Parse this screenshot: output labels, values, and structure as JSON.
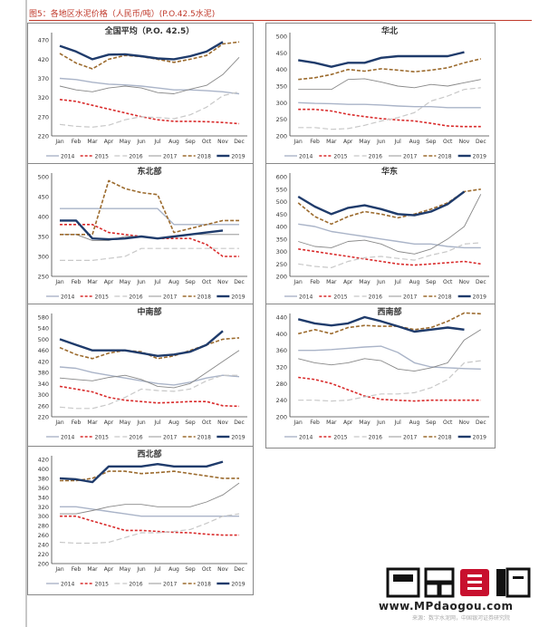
{
  "figure_title": "图5：各地区水泥价格（人民币/吨）(P.O.42.5水泥)",
  "watermark": {
    "logo": "买购网",
    "url": "www.MPdaogou.com"
  },
  "source_note": "来源：数字水泥网，中国银河证券研究院",
  "legend_labels": [
    "2014",
    "2015",
    "2016",
    "2017",
    "2018",
    "2019"
  ],
  "series_colors": {
    "2014": "#aab4c8",
    "2015": "#d92b2b",
    "2016": "#c8c8c8",
    "2017": "#888888",
    "2018": "#9c6b2e",
    "2019": "#1f3b6b"
  },
  "months": [
    "Jan",
    "Feb",
    "Mar",
    "Apr",
    "May",
    "Jun",
    "Jul",
    "Aug",
    "Sep",
    "Oct",
    "Nov",
    "Dec"
  ],
  "chart_data": [
    {
      "type": "line",
      "title": "全国平均（P.O. 42.5）",
      "x": [
        1,
        2,
        3,
        4,
        5,
        6,
        7,
        8,
        9,
        10,
        11,
        12
      ],
      "yticks": [
        220,
        270,
        320,
        370,
        420,
        470
      ],
      "ylim": [
        220,
        480
      ],
      "series": [
        {
          "name": "2014",
          "values": [
            370,
            367,
            360,
            355,
            353,
            350,
            345,
            340,
            340,
            338,
            335,
            330
          ]
        },
        {
          "name": "2015",
          "values": [
            315,
            310,
            300,
            290,
            280,
            270,
            262,
            258,
            258,
            257,
            255,
            252
          ]
        },
        {
          "name": "2016",
          "values": [
            250,
            245,
            243,
            248,
            262,
            270,
            268,
            265,
            275,
            295,
            325,
            335
          ]
        },
        {
          "name": "2017",
          "values": [
            350,
            340,
            335,
            345,
            350,
            345,
            333,
            330,
            342,
            352,
            380,
            425
          ]
        },
        {
          "name": "2018",
          "values": [
            435,
            410,
            395,
            420,
            430,
            427,
            420,
            412,
            420,
            430,
            460,
            465
          ]
        },
        {
          "name": "2019",
          "values": [
            455,
            440,
            420,
            432,
            433,
            428,
            422,
            420,
            428,
            440,
            465,
            null
          ]
        }
      ]
    },
    {
      "type": "line",
      "title": "华北",
      "x": [
        1,
        2,
        3,
        4,
        5,
        6,
        7,
        8,
        9,
        10,
        11,
        12
      ],
      "yticks": [
        200,
        250,
        300,
        350,
        400,
        450,
        500
      ],
      "ylim": [
        200,
        500
      ],
      "series": [
        {
          "name": "2014",
          "values": [
            300,
            298,
            297,
            295,
            295,
            293,
            290,
            288,
            288,
            285,
            285,
            285
          ]
        },
        {
          "name": "2015",
          "values": [
            280,
            280,
            275,
            265,
            258,
            252,
            248,
            245,
            238,
            230,
            228,
            228
          ]
        },
        {
          "name": "2016",
          "values": [
            225,
            225,
            220,
            222,
            232,
            245,
            255,
            270,
            305,
            320,
            340,
            345
          ]
        },
        {
          "name": "2017",
          "values": [
            340,
            340,
            340,
            370,
            372,
            362,
            350,
            345,
            355,
            350,
            360,
            370
          ]
        },
        {
          "name": "2018",
          "values": [
            370,
            375,
            385,
            400,
            395,
            402,
            398,
            393,
            398,
            405,
            420,
            432
          ]
        },
        {
          "name": "2019",
          "values": [
            428,
            420,
            408,
            420,
            420,
            435,
            440,
            440,
            440,
            440,
            452,
            null
          ]
        }
      ]
    },
    {
      "type": "line",
      "title": "东北部",
      "x": [
        1,
        2,
        3,
        4,
        5,
        6,
        7,
        8,
        9,
        10,
        11,
        12
      ],
      "yticks": [
        250,
        300,
        350,
        400,
        450,
        500
      ],
      "ylim": [
        250,
        500
      ],
      "series": [
        {
          "name": "2014",
          "values": [
            420,
            420,
            420,
            420,
            420,
            420,
            420,
            380,
            380,
            380,
            380,
            380
          ]
        },
        {
          "name": "2015",
          "values": [
            380,
            380,
            380,
            360,
            355,
            350,
            345,
            345,
            345,
            330,
            300,
            300
          ]
        },
        {
          "name": "2016",
          "values": [
            290,
            290,
            290,
            295,
            300,
            320,
            320,
            320,
            320,
            320,
            320,
            320
          ]
        },
        {
          "name": "2017",
          "values": [
            355,
            355,
            340,
            340,
            350,
            350,
            345,
            350,
            355,
            355,
            355,
            355
          ]
        },
        {
          "name": "2018",
          "values": [
            355,
            355,
            355,
            490,
            470,
            460,
            455,
            360,
            370,
            380,
            390,
            390
          ]
        },
        {
          "name": "2019",
          "values": [
            390,
            390,
            345,
            343,
            345,
            350,
            345,
            350,
            355,
            360,
            365,
            null
          ]
        }
      ]
    },
    {
      "type": "line",
      "title": "华东",
      "x": [
        1,
        2,
        3,
        4,
        5,
        6,
        7,
        8,
        9,
        10,
        11,
        12
      ],
      "yticks": [
        200,
        250,
        300,
        350,
        400,
        450,
        500,
        550,
        600
      ],
      "ylim": [
        200,
        600
      ],
      "series": [
        {
          "name": "2014",
          "values": [
            410,
            400,
            380,
            370,
            360,
            350,
            340,
            330,
            330,
            320,
            315,
            315
          ]
        },
        {
          "name": "2015",
          "values": [
            310,
            300,
            290,
            280,
            270,
            260,
            250,
            245,
            250,
            255,
            260,
            250
          ]
        },
        {
          "name": "2016",
          "values": [
            250,
            240,
            235,
            260,
            275,
            280,
            272,
            265,
            285,
            300,
            330,
            335
          ]
        },
        {
          "name": "2017",
          "values": [
            340,
            320,
            315,
            340,
            345,
            330,
            300,
            290,
            310,
            350,
            400,
            530
          ]
        },
        {
          "name": "2018",
          "values": [
            495,
            440,
            410,
            440,
            460,
            450,
            435,
            450,
            470,
            495,
            540,
            550
          ]
        },
        {
          "name": "2019",
          "values": [
            520,
            480,
            450,
            475,
            485,
            470,
            450,
            445,
            460,
            490,
            540,
            null
          ]
        }
      ]
    },
    {
      "type": "line",
      "title": "中南部",
      "x": [
        1,
        2,
        3,
        4,
        5,
        6,
        7,
        8,
        9,
        10,
        11,
        12
      ],
      "yticks": [
        220,
        260,
        300,
        340,
        380,
        420,
        460,
        500,
        540,
        580
      ],
      "ylim": [
        220,
        580
      ],
      "series": [
        {
          "name": "2014",
          "values": [
            400,
            395,
            380,
            370,
            360,
            350,
            340,
            335,
            345,
            360,
            370,
            365
          ]
        },
        {
          "name": "2015",
          "values": [
            330,
            320,
            310,
            290,
            280,
            275,
            270,
            272,
            275,
            275,
            260,
            258
          ]
        },
        {
          "name": "2016",
          "values": [
            255,
            250,
            250,
            265,
            290,
            320,
            315,
            312,
            320,
            350,
            370,
            370
          ]
        },
        {
          "name": "2017",
          "values": [
            360,
            355,
            350,
            362,
            370,
            355,
            330,
            325,
            340,
            380,
            420,
            460
          ]
        },
        {
          "name": "2018",
          "values": [
            470,
            445,
            430,
            450,
            460,
            455,
            430,
            440,
            460,
            480,
            500,
            505
          ]
        },
        {
          "name": "2019",
          "values": [
            500,
            480,
            460,
            460,
            460,
            450,
            440,
            445,
            455,
            480,
            530,
            null
          ]
        }
      ]
    },
    {
      "type": "line",
      "title": "西南部",
      "x": [
        1,
        2,
        3,
        4,
        5,
        6,
        7,
        8,
        9,
        10,
        11,
        12
      ],
      "yticks": [
        200,
        240,
        280,
        320,
        360,
        400,
        440
      ],
      "ylim": [
        200,
        440
      ],
      "series": [
        {
          "name": "2014",
          "values": [
            360,
            360,
            362,
            365,
            368,
            370,
            355,
            330,
            320,
            318,
            316,
            315
          ]
        },
        {
          "name": "2015",
          "values": [
            295,
            290,
            280,
            265,
            250,
            242,
            240,
            238,
            240,
            240,
            240,
            240
          ]
        },
        {
          "name": "2016",
          "values": [
            240,
            240,
            238,
            240,
            248,
            255,
            255,
            258,
            270,
            290,
            330,
            335
          ]
        },
        {
          "name": "2017",
          "values": [
            340,
            330,
            325,
            330,
            340,
            335,
            315,
            310,
            318,
            330,
            385,
            410
          ]
        },
        {
          "name": "2018",
          "values": [
            400,
            410,
            400,
            415,
            420,
            418,
            418,
            410,
            415,
            430,
            450,
            448
          ]
        },
        {
          "name": "2019",
          "values": [
            435,
            425,
            420,
            425,
            440,
            430,
            418,
            405,
            410,
            415,
            410,
            null
          ]
        }
      ]
    },
    {
      "type": "line",
      "title": "西北部",
      "x": [
        1,
        2,
        3,
        4,
        5,
        6,
        7,
        8,
        9,
        10,
        11,
        12
      ],
      "yticks": [
        200,
        220,
        240,
        260,
        280,
        300,
        320,
        340,
        360,
        380,
        400,
        420
      ],
      "ylim": [
        200,
        420
      ],
      "series": [
        {
          "name": "2014",
          "values": [
            320,
            320,
            315,
            310,
            305,
            300,
            300,
            300,
            300,
            300,
            300,
            300
          ]
        },
        {
          "name": "2015",
          "values": [
            300,
            300,
            290,
            280,
            270,
            270,
            268,
            266,
            265,
            262,
            260,
            260
          ]
        },
        {
          "name": "2016",
          "values": [
            245,
            243,
            243,
            245,
            255,
            265,
            265,
            268,
            272,
            285,
            300,
            305
          ]
        },
        {
          "name": "2017",
          "values": [
            305,
            305,
            312,
            320,
            325,
            325,
            320,
            320,
            320,
            330,
            345,
            370
          ]
        },
        {
          "name": "2018",
          "values": [
            375,
            375,
            380,
            395,
            395,
            390,
            392,
            395,
            390,
            385,
            380,
            380
          ]
        },
        {
          "name": "2019",
          "values": [
            380,
            378,
            372,
            405,
            405,
            405,
            410,
            405,
            405,
            405,
            415,
            null
          ]
        }
      ]
    }
  ]
}
